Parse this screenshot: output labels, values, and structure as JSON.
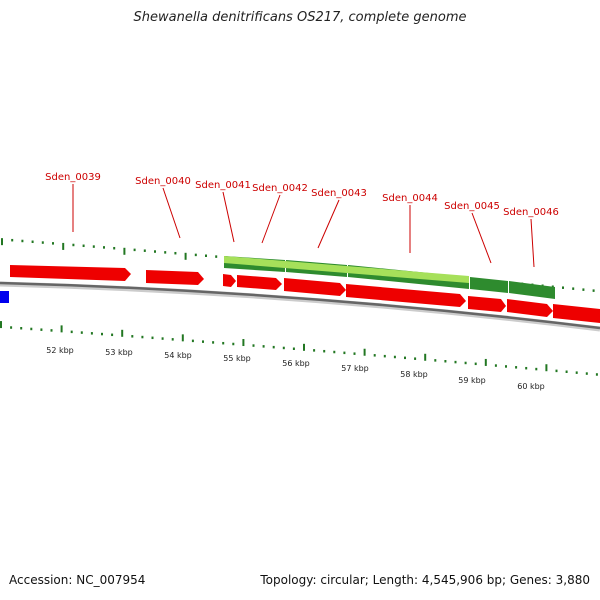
{
  "title": "Shewanella denitrificans OS217, complete genome",
  "footer": {
    "accession": "Accession: NC_007954",
    "summary": "Topology: circular; Length: 4,545,906 bp; Genes: 3,880"
  },
  "colors": {
    "cds": "#ee0000",
    "rna": "#0000ee",
    "gene": "#2e8b2e",
    "gene_highlight": "#a6e05a",
    "ticks": "#227722",
    "backbone": "#666666",
    "label": "#cc0000"
  },
  "genes": [
    {
      "id": "Sden_0039"
    },
    {
      "id": "Sden_0040"
    },
    {
      "id": "Sden_0041"
    },
    {
      "id": "Sden_0042"
    },
    {
      "id": "Sden_0043"
    },
    {
      "id": "Sden_0044"
    },
    {
      "id": "Sden_0045"
    },
    {
      "id": "Sden_0046"
    }
  ],
  "scale": {
    "unit": "kbp",
    "labels": [
      "52 kbp",
      "53 kbp",
      "54 kbp",
      "55 kbp",
      "56 kbp",
      "57 kbp",
      "58 kbp",
      "59 kbp",
      "60 kbp"
    ]
  }
}
